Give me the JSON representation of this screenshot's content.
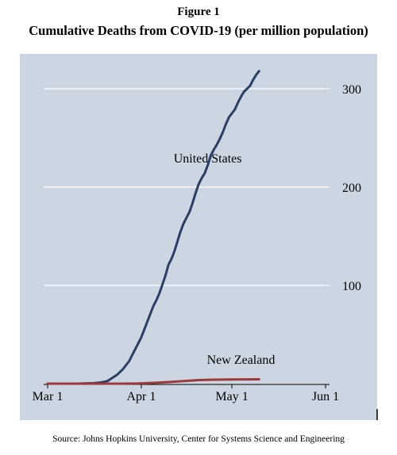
{
  "figure": {
    "label": "Figure 1",
    "title": "Cumulative Deaths from COVID-19 (per million population)",
    "source": "Source: Johns Hopkins University, Center for Systems Science and Engineering"
  },
  "colors": {
    "background": "#ccd6e2",
    "grid": "#ffffff",
    "us_line": "#2b3e66",
    "nz_line": "#9b3a3a"
  },
  "chart_data": {
    "type": "line",
    "title": "Cumulative Deaths from COVID-19 (per million population)",
    "xlabel": "",
    "ylabel": "",
    "xlim": [
      0,
      92
    ],
    "ylim": [
      0,
      330
    ],
    "x_ticks": [
      {
        "label": "Mar 1",
        "x": 0
      },
      {
        "label": "Apr 1",
        "x": 31
      },
      {
        "label": "May 1",
        "x": 61
      },
      {
        "label": "Jun 1",
        "x": 92
      }
    ],
    "y_ticks": [
      {
        "label": "100",
        "y": 100
      },
      {
        "label": "200",
        "y": 200
      },
      {
        "label": "300",
        "y": 300
      }
    ],
    "grid": true,
    "series": [
      {
        "name": "United States",
        "points": [
          [
            0,
            0
          ],
          [
            10,
            0
          ],
          [
            15,
            0.5
          ],
          [
            17,
            1
          ],
          [
            19,
            2
          ],
          [
            20,
            3
          ],
          [
            21,
            5
          ],
          [
            22,
            7
          ],
          [
            23,
            9
          ],
          [
            24,
            12
          ],
          [
            25,
            15
          ],
          [
            26,
            19
          ],
          [
            27,
            23
          ],
          [
            28,
            29
          ],
          [
            29,
            35
          ],
          [
            30,
            41
          ],
          [
            31,
            47
          ],
          [
            32,
            55
          ],
          [
            33,
            63
          ],
          [
            34,
            71
          ],
          [
            35,
            79
          ],
          [
            36,
            85
          ],
          [
            37,
            92
          ],
          [
            38,
            101
          ],
          [
            39,
            110
          ],
          [
            40,
            121
          ],
          [
            41,
            127
          ],
          [
            42,
            135
          ],
          [
            43,
            145
          ],
          [
            44,
            155
          ],
          [
            45,
            163
          ],
          [
            46,
            169
          ],
          [
            47,
            175
          ],
          [
            48,
            184
          ],
          [
            49,
            194
          ],
          [
            50,
            203
          ],
          [
            51,
            209
          ],
          [
            52,
            214
          ],
          [
            53,
            222
          ],
          [
            54,
            232
          ],
          [
            55,
            238
          ],
          [
            56,
            243
          ],
          [
            57,
            249
          ],
          [
            58,
            256
          ],
          [
            59,
            264
          ],
          [
            60,
            271
          ],
          [
            61,
            275
          ],
          [
            62,
            279
          ],
          [
            63,
            286
          ],
          [
            64,
            292
          ],
          [
            65,
            297
          ],
          [
            66,
            300
          ],
          [
            67,
            303
          ],
          [
            68,
            309
          ],
          [
            69,
            314
          ],
          [
            70,
            318
          ]
        ]
      },
      {
        "name": "New Zealand",
        "points": [
          [
            0,
            0
          ],
          [
            25,
            0
          ],
          [
            30,
            0.2
          ],
          [
            35,
            0.8
          ],
          [
            40,
            1.6
          ],
          [
            45,
            2.6
          ],
          [
            50,
            3.6
          ],
          [
            55,
            4
          ],
          [
            60,
            4.2
          ],
          [
            70,
            4.4
          ]
        ]
      }
    ],
    "annotations": [
      {
        "text": "United States",
        "x": 53,
        "y": 225
      },
      {
        "text": "New Zealand",
        "x": 64,
        "y": 20
      }
    ]
  }
}
